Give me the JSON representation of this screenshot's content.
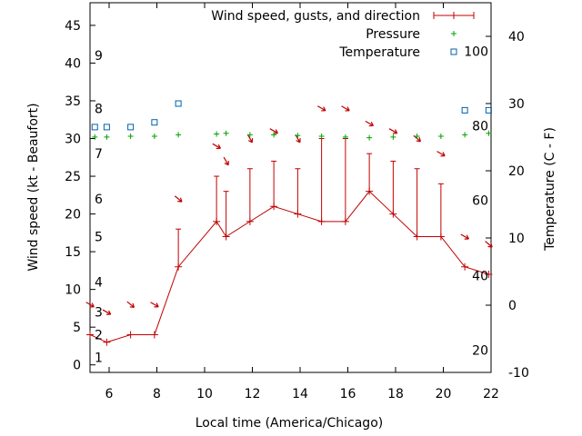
{
  "chart_data": {
    "type": "line",
    "xlabel": "Local time (America/Chicago)",
    "ylabel_left": "Wind speed (kt - Beaufort)",
    "ylabel_right": "Temperature (C - F)",
    "xlim": [
      5.2,
      22
    ],
    "ylim_left": [
      -1,
      48
    ],
    "ylim_right": [
      -10,
      45
    ],
    "x_ticks": [
      6,
      8,
      10,
      12,
      14,
      16,
      18,
      20,
      22
    ],
    "y_left_ticks": [
      0,
      5,
      10,
      15,
      20,
      25,
      30,
      35,
      40,
      45
    ],
    "y_right_ticks": [
      -10,
      0,
      10,
      20,
      30,
      40
    ],
    "beaufort_scale": [
      {
        "label": "1",
        "y": 1
      },
      {
        "label": "2",
        "y": 4
      },
      {
        "label": "3",
        "y": 7
      },
      {
        "label": "4",
        "y": 11
      },
      {
        "label": "5",
        "y": 17
      },
      {
        "label": "6",
        "y": 22
      },
      {
        "label": "7",
        "y": 28
      },
      {
        "label": "8",
        "y": 34
      },
      {
        "label": "9",
        "y": 41
      }
    ],
    "fahrenheit_scale": [
      {
        "label": "20",
        "temp_c": -6.7
      },
      {
        "label": "40",
        "temp_c": 4.4
      },
      {
        "label": "60",
        "temp_c": 15.6
      },
      {
        "label": "80",
        "temp_c": 26.7
      },
      {
        "label": "100",
        "temp_c": 37.8
      }
    ],
    "legend": [
      {
        "label": "Wind speed, gusts, and direction",
        "color": "#c00000"
      },
      {
        "label": "Pressure",
        "color": "#00a000"
      },
      {
        "label": "Temperature",
        "color": "#0060ad"
      }
    ],
    "series": [
      {
        "name": "Wind speed, gusts, and direction",
        "color": "#c00000",
        "x": [
          5.2,
          5.9,
          6.9,
          7.9,
          8.9,
          10.5,
          10.9,
          11.9,
          12.9,
          13.9,
          14.9,
          15.9,
          16.9,
          17.9,
          18.9,
          19.9,
          20.9,
          21.9
        ],
        "y": [
          4,
          3,
          4,
          4,
          13,
          19,
          17,
          19,
          21,
          20,
          19,
          19,
          23,
          20,
          17,
          17,
          13,
          12
        ],
        "gust": [
          null,
          null,
          null,
          null,
          18,
          25,
          23,
          26,
          27,
          26,
          30,
          30,
          28,
          27,
          26,
          24,
          null,
          null
        ],
        "dir_deg": [
          300,
          300,
          310,
          300,
          310,
          300,
          330,
          330,
          300,
          330,
          300,
          300,
          300,
          300,
          310,
          300,
          300,
          310
        ]
      },
      {
        "name": "Pressure",
        "color": "#00a000",
        "x": [
          5.4,
          5.9,
          6.9,
          7.9,
          8.9,
          10.5,
          10.9,
          11.9,
          12.9,
          13.9,
          14.9,
          15.9,
          16.9,
          17.9,
          18.9,
          19.9,
          20.9,
          21.9
        ],
        "y": [
          30.2,
          30.2,
          30.3,
          30.3,
          30.5,
          30.6,
          30.7,
          30.5,
          30.5,
          30.4,
          30.3,
          30.2,
          30.1,
          30.2,
          30.3,
          30.3,
          30.5,
          30.7
        ]
      },
      {
        "name": "Temperature",
        "color": "#0060ad",
        "x": [
          5.4,
          5.9,
          6.9,
          7.9,
          8.9,
          20.9,
          21.9
        ],
        "y": [
          26.5,
          26.5,
          26.5,
          27.2,
          30.0,
          29.0,
          29.0
        ]
      }
    ]
  }
}
